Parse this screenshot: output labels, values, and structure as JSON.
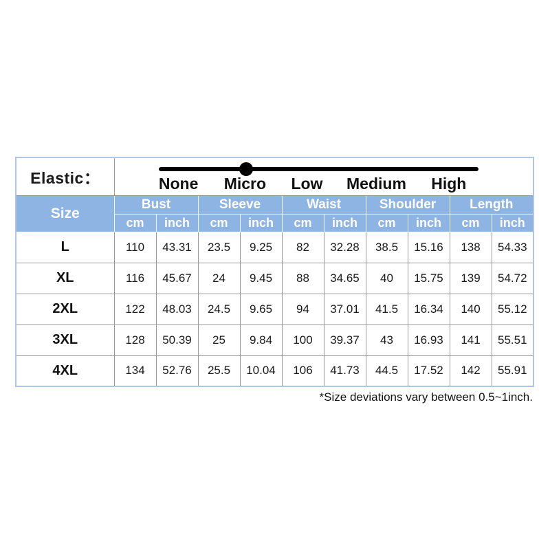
{
  "elastic": {
    "label": "Elastic：",
    "levels": [
      "None",
      "Micro",
      "Low",
      "Medium",
      "High"
    ],
    "selected": "Micro",
    "selected_index": 1
  },
  "table": {
    "size_header": "Size",
    "groups": [
      {
        "label": "Bust"
      },
      {
        "label": "Sleeve"
      },
      {
        "label": "Waist"
      },
      {
        "label": "Shoulder"
      },
      {
        "label": "Length"
      }
    ],
    "unit_headers": [
      "cm",
      "inch"
    ],
    "rows": [
      {
        "size": "L",
        "values": [
          "110",
          "43.31",
          "23.5",
          "9.25",
          "82",
          "32.28",
          "38.5",
          "15.16",
          "138",
          "54.33"
        ]
      },
      {
        "size": "XL",
        "values": [
          "116",
          "45.67",
          "24",
          "9.45",
          "88",
          "34.65",
          "40",
          "15.75",
          "139",
          "54.72"
        ]
      },
      {
        "size": "2XL",
        "values": [
          "122",
          "48.03",
          "24.5",
          "9.65",
          "94",
          "37.01",
          "41.5",
          "16.34",
          "140",
          "55.12"
        ]
      },
      {
        "size": "3XL",
        "values": [
          "128",
          "50.39",
          "25",
          "9.84",
          "100",
          "39.37",
          "43",
          "16.93",
          "141",
          "55.51"
        ]
      },
      {
        "size": "4XL",
        "values": [
          "134",
          "52.76",
          "25.5",
          "10.04",
          "106",
          "41.73",
          "44.5",
          "17.52",
          "142",
          "55.91"
        ]
      }
    ]
  },
  "footnote": "*Size deviations vary between 0.5~1inch.",
  "colors": {
    "header_bg": "#8DB4E2",
    "header_text": "#FFFFFF",
    "outer_border": "#AEC6E4",
    "inner_border": "#999999",
    "slider": "#000000",
    "background": "#FFFFFF"
  }
}
